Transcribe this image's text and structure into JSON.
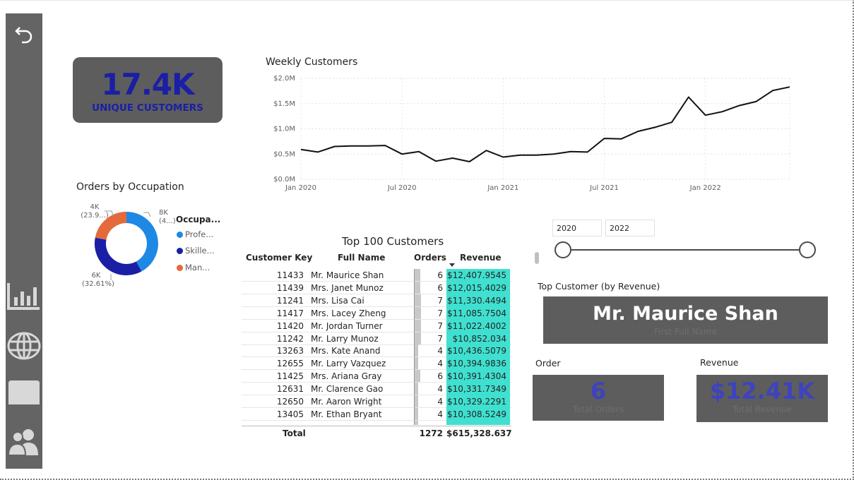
{
  "sidebar": {
    "items": [
      {
        "icon": "back-arrow-icon"
      },
      {
        "icon": "bar-chart-icon"
      },
      {
        "icon": "globe-icon"
      },
      {
        "icon": "card-icon"
      },
      {
        "icon": "people-icon"
      }
    ]
  },
  "kpi": {
    "value": "17.4K",
    "label": "UNIQUE CUSTOMERS"
  },
  "occupation": {
    "title": "Orders by Occupation",
    "legend_title": "Occupa...",
    "legend": [
      {
        "label": "Profe...",
        "color": "#1e88e5"
      },
      {
        "label": "Skille...",
        "color": "#1a1fa6"
      },
      {
        "label": "Man...",
        "color": "#e46a3c"
      }
    ],
    "slice_labels": [
      {
        "line1": "8K",
        "line2": "(4...)"
      },
      {
        "line1": "6K",
        "line2": "(32.61%)"
      },
      {
        "line1": "4K",
        "line2": "(23.9...)"
      }
    ]
  },
  "chart_data": {
    "type": "line",
    "title": "Weekly Customers",
    "x": [
      "2020-01",
      "2020-02",
      "2020-03",
      "2020-04",
      "2020-05",
      "2020-06",
      "2020-07",
      "2020-08",
      "2020-09",
      "2020-10",
      "2020-11",
      "2020-12",
      "2021-01",
      "2021-02",
      "2021-03",
      "2021-04",
      "2021-05",
      "2021-06",
      "2021-07",
      "2021-08",
      "2021-09",
      "2021-10",
      "2021-11",
      "2021-12",
      "2022-01",
      "2022-02",
      "2022-03",
      "2022-04",
      "2022-05",
      "2022-06"
    ],
    "series": [
      {
        "values": [
          0.59,
          0.54,
          0.65,
          0.66,
          0.66,
          0.67,
          0.5,
          0.55,
          0.36,
          0.42,
          0.35,
          0.57,
          0.44,
          0.48,
          0.48,
          0.5,
          0.55,
          0.54,
          0.81,
          0.8,
          0.95,
          1.03,
          1.13,
          1.63,
          1.27,
          1.34,
          1.46,
          1.54,
          1.76,
          1.83
        ]
      }
    ],
    "x_tick_labels": [
      "Jan 2020",
      "Jul 2020",
      "Jan 2021",
      "Jul 2021",
      "Jan 2022"
    ],
    "y_tick_labels": [
      "$0.0M",
      "$0.5M",
      "$1.0M",
      "$1.5M",
      "$2.0M"
    ],
    "ylim": [
      0,
      2.0
    ],
    "grid": true
  },
  "table": {
    "title": "Top 100 Customers",
    "headers": {
      "key": "Customer Key",
      "name": "Full Name",
      "orders": "Orders",
      "revenue": "Revenue"
    },
    "rows": [
      {
        "key": "11433",
        "name": "Mr. Maurice Shan",
        "orders": "6",
        "revenue": "$12,407.9545"
      },
      {
        "key": "11439",
        "name": "Mrs. Janet Munoz",
        "orders": "6",
        "revenue": "$12,015.4029"
      },
      {
        "key": "11241",
        "name": "Mrs. Lisa Cai",
        "orders": "7",
        "revenue": "$11,330.4494"
      },
      {
        "key": "11417",
        "name": "Mrs. Lacey Zheng",
        "orders": "7",
        "revenue": "$11,085.7504"
      },
      {
        "key": "11420",
        "name": "Mr. Jordan Turner",
        "orders": "7",
        "revenue": "$11,022.4002"
      },
      {
        "key": "11242",
        "name": "Mr. Larry Munoz",
        "orders": "7",
        "revenue": "$10,852.034"
      },
      {
        "key": "13263",
        "name": "Mrs. Kate Anand",
        "orders": "4",
        "revenue": "$10,436.5079"
      },
      {
        "key": "12655",
        "name": "Mr. Larry Vazquez",
        "orders": "4",
        "revenue": "$10,394.9836"
      },
      {
        "key": "11425",
        "name": "Mrs. Ariana Gray",
        "orders": "6",
        "revenue": "$10,391.4304"
      },
      {
        "key": "12631",
        "name": "Mr. Clarence Gao",
        "orders": "4",
        "revenue": "$10,331.7349"
      },
      {
        "key": "12650",
        "name": "Mr. Aaron Wright",
        "orders": "4",
        "revenue": "$10,329.2291"
      },
      {
        "key": "13405",
        "name": "Mr. Ethan Bryant",
        "orders": "4",
        "revenue": "$10,308.5249"
      }
    ],
    "total": {
      "label": "Total",
      "orders": "1272",
      "revenue": "$615,328.637"
    }
  },
  "slicer": {
    "from": "2020",
    "to": "2022"
  },
  "top_customer": {
    "title": "Top Customer (by Revenue)",
    "name": "Mr. Maurice Shan",
    "caption": "First Full Name"
  },
  "order_card": {
    "title": "Order",
    "value": "6",
    "caption": "Total Orders"
  },
  "revenue_card": {
    "title": "Revenue",
    "value": "$12.41K",
    "caption": "Total Revenue"
  },
  "colors": {
    "accent": "#1a1fa6",
    "teal": "#3fe0d0",
    "card_bg": "#5d5d5d",
    "sidebar": "#646464"
  }
}
